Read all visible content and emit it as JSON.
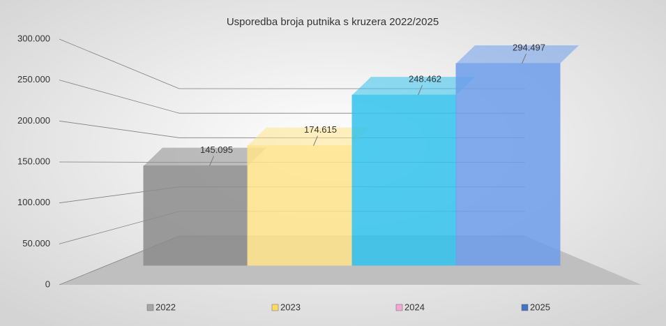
{
  "chart_data": {
    "type": "bar3d",
    "title": "Usporedba broja putnika s kruzera 2022/2025",
    "series": [
      {
        "name": "2022",
        "color": "#a5a5a5",
        "bar_color": "#8c8c8c",
        "values": [
          145095
        ],
        "value_labels": [
          "145.095"
        ]
      },
      {
        "name": "2023",
        "color": "#ffd966",
        "bar_color": "#ffe48a",
        "values": [
          174615
        ],
        "value_labels": [
          "174.615"
        ]
      },
      {
        "name": "2024",
        "color": "#f4a6d7",
        "bar_color": "#33c3ee",
        "values": [
          248462
        ],
        "value_labels": [
          "248.462"
        ]
      },
      {
        "name": "2025",
        "color": "#4472c4",
        "bar_color": "#6d9eeb",
        "values": [
          294497
        ],
        "value_labels": [
          "294.497"
        ]
      }
    ],
    "ylim": [
      0,
      300000
    ],
    "yticks": [
      0,
      {
        "value": 50000,
        "label": "50.000"
      },
      {
        "value": 100000,
        "label": "100.000"
      },
      {
        "value": 150000,
        "label": "150.000"
      },
      {
        "value": 200000,
        "label": "200.000"
      },
      {
        "value": 250000,
        "label": "250.000"
      },
      {
        "value": 300000,
        "label": "300.000"
      }
    ],
    "grid": true
  }
}
